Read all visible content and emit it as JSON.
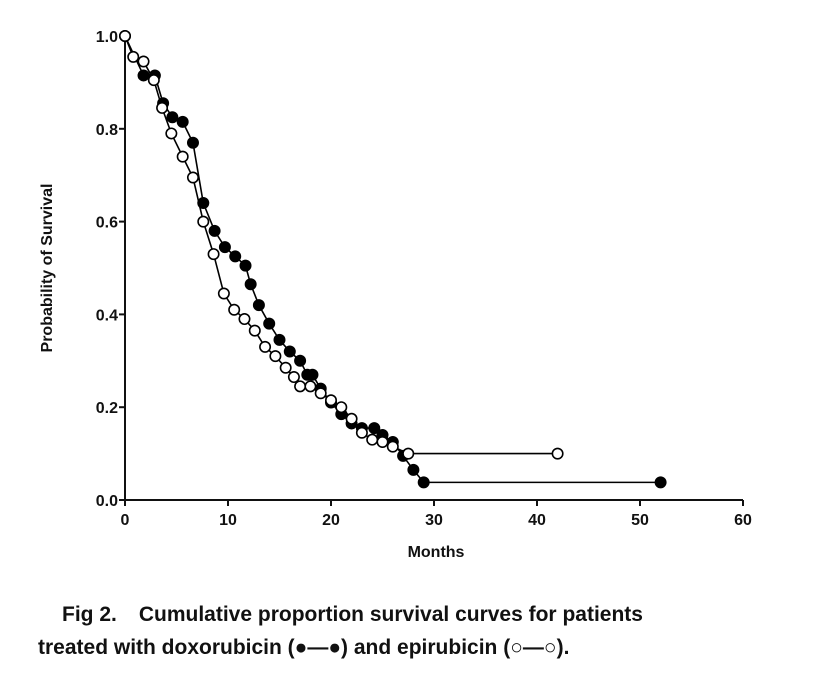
{
  "chart_data": {
    "type": "line",
    "step": true,
    "xlabel": "Months",
    "ylabel": "Probability of Survival",
    "xlim": [
      0,
      60
    ],
    "ylim": [
      0,
      1
    ],
    "xticks": [
      "0",
      "10",
      "20",
      "30",
      "40",
      "50",
      "60"
    ],
    "yticks": [
      "0.0",
      "0.2",
      "0.4",
      "0.6",
      "0.8",
      "1.0"
    ],
    "grid": false,
    "series": [
      {
        "name": "doxorubicin",
        "marker": "filled-circle",
        "color": "#000000",
        "points": [
          [
            0,
            1.0
          ],
          [
            1.8,
            0.915
          ],
          [
            2.9,
            0.915
          ],
          [
            3.7,
            0.855
          ],
          [
            4.6,
            0.825
          ],
          [
            5.6,
            0.815
          ],
          [
            6.6,
            0.77
          ],
          [
            7.6,
            0.64
          ],
          [
            8.7,
            0.58
          ],
          [
            9.7,
            0.545
          ],
          [
            10.7,
            0.525
          ],
          [
            11.7,
            0.505
          ],
          [
            12.2,
            0.465
          ],
          [
            13.0,
            0.42
          ],
          [
            14.0,
            0.38
          ],
          [
            15.0,
            0.345
          ],
          [
            16.0,
            0.32
          ],
          [
            17.0,
            0.3
          ],
          [
            17.7,
            0.27
          ],
          [
            18.2,
            0.27
          ],
          [
            19.0,
            0.24
          ],
          [
            20.0,
            0.21
          ],
          [
            21.0,
            0.185
          ],
          [
            22.0,
            0.165
          ],
          [
            23.0,
            0.155
          ],
          [
            24.2,
            0.155
          ],
          [
            25.0,
            0.14
          ],
          [
            26.0,
            0.125
          ],
          [
            27.0,
            0.095
          ],
          [
            28.0,
            0.065
          ],
          [
            29.0,
            0.038
          ],
          [
            52.0,
            0.038
          ]
        ]
      },
      {
        "name": "epirubicin",
        "marker": "open-circle",
        "color": "#000000",
        "points": [
          [
            0,
            1.0
          ],
          [
            0.8,
            0.955
          ],
          [
            1.8,
            0.945
          ],
          [
            2.8,
            0.905
          ],
          [
            3.6,
            0.845
          ],
          [
            4.5,
            0.79
          ],
          [
            5.6,
            0.74
          ],
          [
            6.6,
            0.695
          ],
          [
            7.6,
            0.6
          ],
          [
            8.6,
            0.53
          ],
          [
            9.6,
            0.445
          ],
          [
            10.6,
            0.41
          ],
          [
            11.6,
            0.39
          ],
          [
            12.6,
            0.365
          ],
          [
            13.6,
            0.33
          ],
          [
            14.6,
            0.31
          ],
          [
            15.6,
            0.285
          ],
          [
            16.4,
            0.265
          ],
          [
            17.0,
            0.245
          ],
          [
            18.0,
            0.245
          ],
          [
            19.0,
            0.23
          ],
          [
            20.0,
            0.215
          ],
          [
            21.0,
            0.2
          ],
          [
            22.0,
            0.175
          ],
          [
            23.0,
            0.145
          ],
          [
            24.0,
            0.13
          ],
          [
            25.0,
            0.125
          ],
          [
            26.0,
            0.115
          ],
          [
            27.5,
            0.1
          ],
          [
            42.0,
            0.1
          ]
        ]
      }
    ]
  },
  "caption": {
    "line1": "Fig 2.",
    "line1b": "Cumulative proportion survival curves for patients",
    "line2": "treated with doxorubicin (●—●) and epirubicin (○—○)."
  }
}
